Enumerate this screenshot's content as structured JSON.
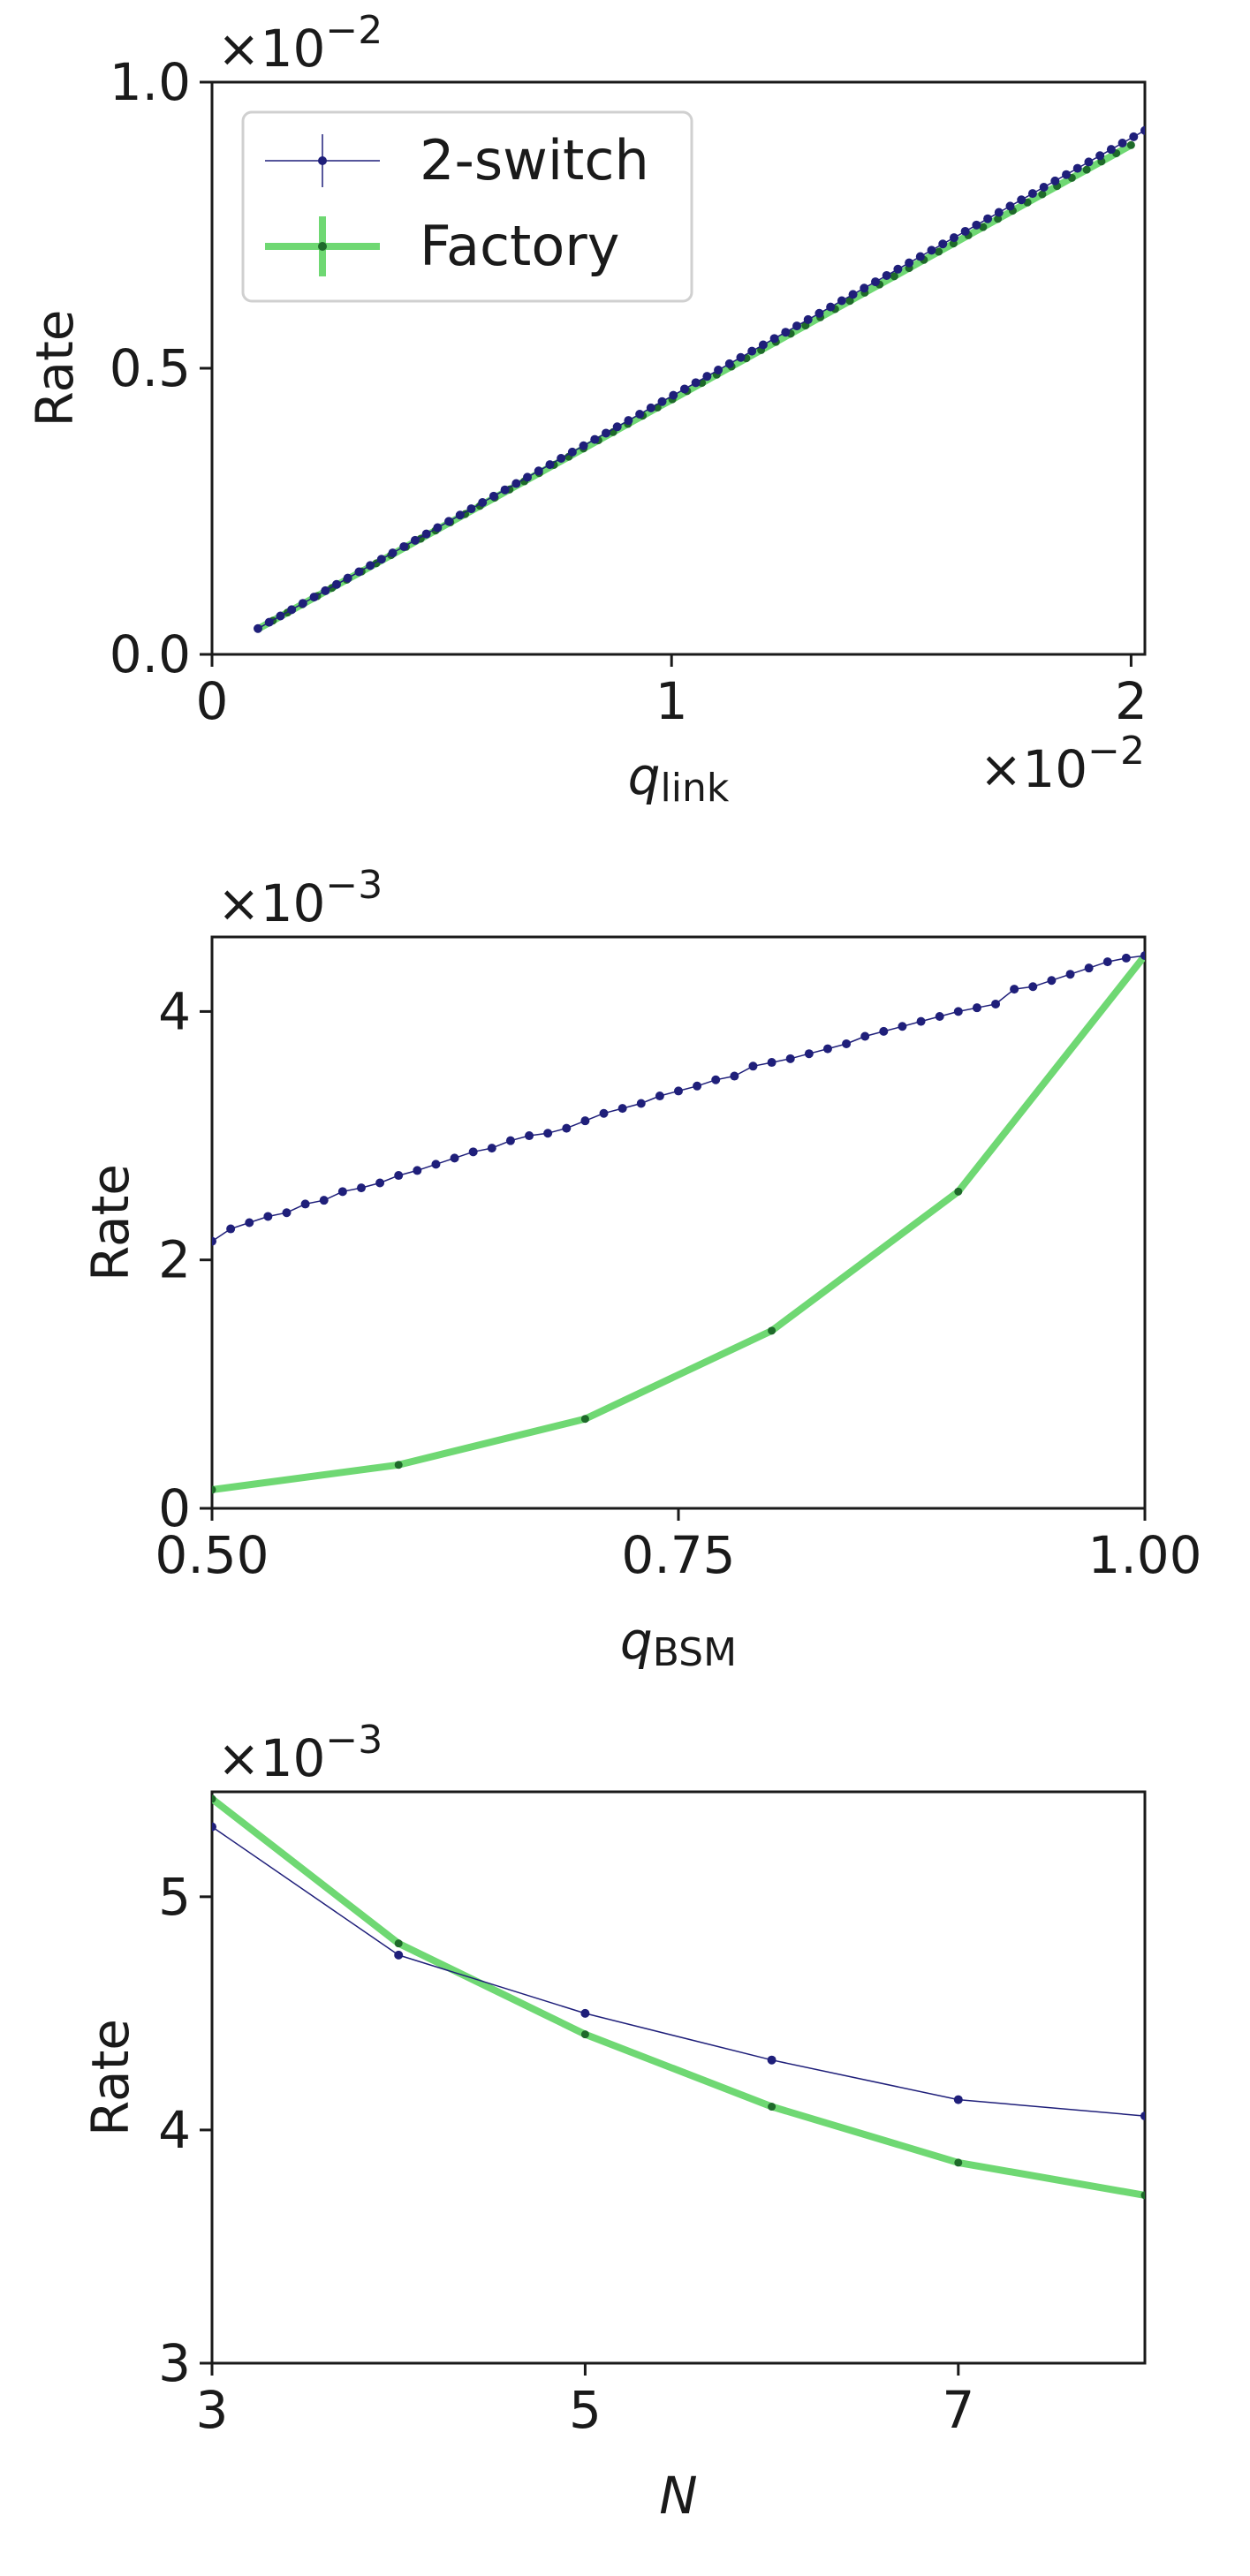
{
  "colors": {
    "two_switch": "#1f1f7a",
    "factory": "#6fd873",
    "factory_marker": "#1e6a2a",
    "axis": "#1a1a1a"
  },
  "chart_data": [
    {
      "id": "top",
      "type": "line",
      "xlabel": "q",
      "xlabel_sub": "link",
      "ylabel": "Rate",
      "x_offset": "×10",
      "x_offset_exp": "−2",
      "y_offset": "×10",
      "y_offset_exp": "−2",
      "xlim": [
        0,
        2.03
      ],
      "ylim": [
        0,
        1.0
      ],
      "xticks": [
        0,
        1,
        2
      ],
      "xtick_labels": [
        "0",
        "1",
        "2"
      ],
      "yticks": [
        0,
        0.5,
        1.0
      ],
      "ytick_labels": [
        "0.0",
        "0.5",
        "1.0"
      ],
      "legend": {
        "position": "top-left",
        "entries": [
          "2-switch",
          "Factory"
        ]
      },
      "series": [
        {
          "name": "2-switch",
          "key": "two_switch",
          "x_range": [
            0.1,
            2.03
          ],
          "n": 80,
          "slope": 0.451,
          "intercept": 0.0
        },
        {
          "name": "Factory",
          "key": "factory",
          "x_range": [
            0.1,
            2.0
          ],
          "n": 60,
          "slope": 0.445,
          "intercept": 0.0
        }
      ]
    },
    {
      "id": "middle",
      "type": "line",
      "xlabel": "q",
      "xlabel_sub": "BSM",
      "ylabel": "Rate",
      "y_offset": "×10",
      "y_offset_exp": "−3",
      "xlim": [
        0.5,
        1.0
      ],
      "ylim": [
        0,
        4.6
      ],
      "xticks": [
        0.5,
        0.75,
        1.0
      ],
      "xtick_labels": [
        "0.50",
        "0.75",
        "1.00"
      ],
      "yticks": [
        0,
        2,
        4
      ],
      "ytick_labels": [
        "0",
        "2",
        "4"
      ],
      "series": [
        {
          "name": "2-switch",
          "key": "two_switch",
          "x": [
            0.5,
            0.51,
            0.52,
            0.53,
            0.54,
            0.55,
            0.56,
            0.57,
            0.58,
            0.59,
            0.6,
            0.61,
            0.62,
            0.63,
            0.64,
            0.65,
            0.66,
            0.67,
            0.68,
            0.69,
            0.7,
            0.71,
            0.72,
            0.73,
            0.74,
            0.75,
            0.76,
            0.77,
            0.78,
            0.79,
            0.8,
            0.81,
            0.82,
            0.83,
            0.84,
            0.85,
            0.86,
            0.87,
            0.88,
            0.89,
            0.9,
            0.91,
            0.92,
            0.93,
            0.94,
            0.95,
            0.96,
            0.97,
            0.98,
            0.99,
            1.0
          ],
          "y": [
            2.15,
            2.25,
            2.3,
            2.35,
            2.38,
            2.45,
            2.48,
            2.55,
            2.58,
            2.62,
            2.68,
            2.72,
            2.77,
            2.82,
            2.87,
            2.9,
            2.96,
            3.0,
            3.02,
            3.06,
            3.12,
            3.18,
            3.22,
            3.26,
            3.32,
            3.36,
            3.4,
            3.45,
            3.48,
            3.56,
            3.59,
            3.62,
            3.66,
            3.7,
            3.74,
            3.8,
            3.84,
            3.88,
            3.92,
            3.96,
            4.0,
            4.03,
            4.06,
            4.18,
            4.2,
            4.25,
            4.3,
            4.35,
            4.4,
            4.43,
            4.45
          ]
        },
        {
          "name": "Factory",
          "key": "factory",
          "x": [
            0.5,
            0.6,
            0.7,
            0.8,
            0.9,
            1.0
          ],
          "y": [
            0.15,
            0.35,
            0.72,
            1.43,
            2.55,
            4.45
          ]
        }
      ]
    },
    {
      "id": "bottom",
      "type": "line",
      "xlabel": "N",
      "xlabel_sub": "",
      "ylabel": "Rate",
      "y_offset": "×10",
      "y_offset_exp": "−3",
      "xlim": [
        3,
        8
      ],
      "ylim": [
        3,
        5.45
      ],
      "xticks": [
        3,
        5,
        7
      ],
      "xtick_labels": [
        "3",
        "5",
        "7"
      ],
      "yticks": [
        3,
        4,
        5
      ],
      "ytick_labels": [
        "3",
        "4",
        "5"
      ],
      "series": [
        {
          "name": "2-switch",
          "key": "two_switch",
          "x": [
            3,
            4,
            5,
            6,
            7,
            8
          ],
          "y": [
            5.3,
            4.75,
            4.5,
            4.3,
            4.13,
            4.06
          ]
        },
        {
          "name": "Factory",
          "key": "factory",
          "x": [
            3,
            4,
            5,
            6,
            7,
            8
          ],
          "y": [
            5.42,
            4.8,
            4.41,
            4.1,
            3.86,
            3.72
          ]
        }
      ]
    }
  ]
}
